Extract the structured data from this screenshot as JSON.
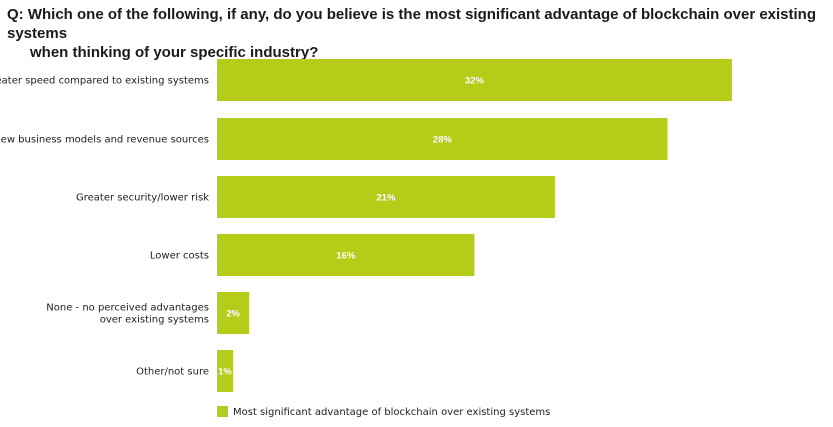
{
  "chart_data": {
    "type": "bar",
    "orientation": "horizontal",
    "title_prefix": "Q:",
    "title_line1": "Which one of the following, if any, do you believe is the most significant advantage of blockchain over existing systems",
    "title_line2": "when thinking of your specific industry?",
    "categories": [
      [
        "Greater speed compared to existing systems"
      ],
      [
        "New business models and revenue sources"
      ],
      [
        "Greater security/lower risk"
      ],
      [
        "Lower costs"
      ],
      [
        "None - no perceived advantages",
        "over existing systems"
      ],
      [
        "Other/not sure"
      ]
    ],
    "values": [
      32,
      28,
      21,
      16,
      2,
      1
    ],
    "value_labels": [
      "32%",
      "28%",
      "21%",
      "16%",
      "2%",
      "1%"
    ],
    "series_name": "Most significant advantage of blockchain over existing systems",
    "bar_color": "#b5cc18",
    "legend_position": "bottom"
  }
}
